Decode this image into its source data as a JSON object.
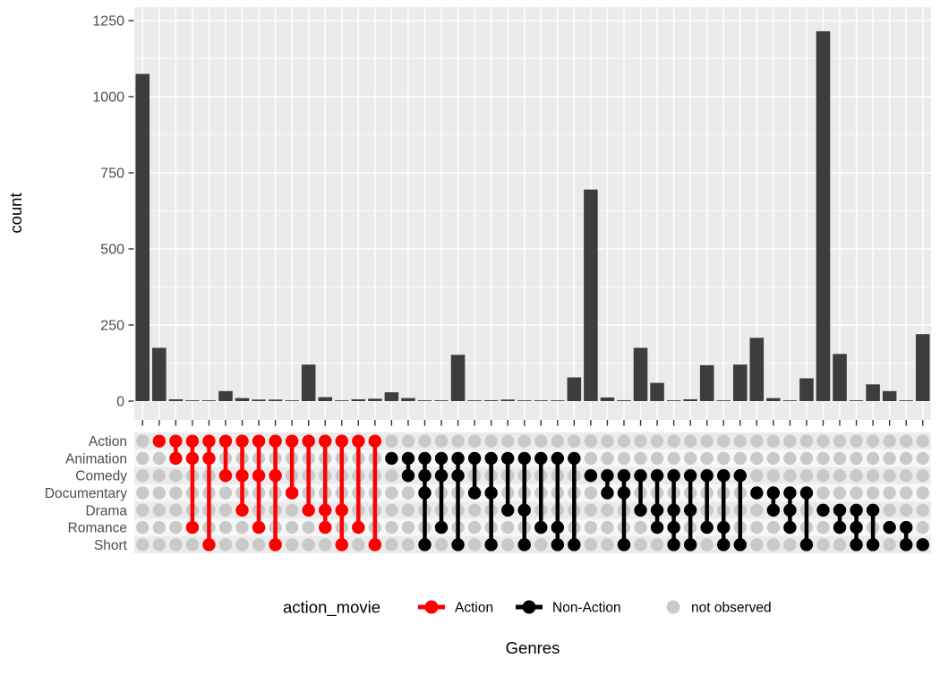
{
  "y_axis": {
    "title": "count",
    "ticks": [
      0,
      250,
      500,
      750,
      1000,
      1250
    ]
  },
  "x_axis": {
    "title": "Genres"
  },
  "matrix_rows": [
    "Action",
    "Animation",
    "Comedy",
    "Documentary",
    "Drama",
    "Romance",
    "Short"
  ],
  "legend": {
    "title": "action_movie",
    "items": [
      {
        "label": "Action",
        "color": "#FF0000",
        "key": "line-dot"
      },
      {
        "label": "Non-Action",
        "color": "#000000",
        "key": "line-dot"
      },
      {
        "label": "not observed",
        "color": "#C9C9C9",
        "key": "dot"
      }
    ]
  },
  "colors": {
    "bar": "#3D3D3D",
    "action": "#FF0000",
    "non_action": "#000000",
    "not_observed": "#C9C9C9",
    "panel": "#EBEBEB",
    "grid": "#FFFFFF",
    "stripe_dark": "#EBEBEB",
    "stripe_light": "#F7F7F7",
    "tick_label": "#4D4D4D",
    "axis_title": "#000000",
    "tick_mark": "#333333"
  },
  "chart_data": {
    "type": "bar",
    "variant": "upset",
    "title": "",
    "xlabel": "Genres",
    "ylabel": "count",
    "ylim": [
      0,
      1250
    ],
    "grid": true,
    "legend_position": "bottom",
    "set_rows": [
      "Action",
      "Animation",
      "Comedy",
      "Documentary",
      "Drama",
      "Romance",
      "Short"
    ],
    "combinations": [
      {
        "genres": [],
        "count": 1075,
        "group": "empty"
      },
      {
        "genres": [
          "Action"
        ],
        "count": 175,
        "group": "action"
      },
      {
        "genres": [
          "Action",
          "Animation"
        ],
        "count": 6,
        "group": "action"
      },
      {
        "genres": [
          "Action",
          "Animation",
          "Romance"
        ],
        "count": 2,
        "group": "action"
      },
      {
        "genres": [
          "Action",
          "Animation",
          "Short"
        ],
        "count": 2,
        "group": "action"
      },
      {
        "genres": [
          "Action",
          "Comedy"
        ],
        "count": 33,
        "group": "action"
      },
      {
        "genres": [
          "Action",
          "Comedy",
          "Drama"
        ],
        "count": 10,
        "group": "action"
      },
      {
        "genres": [
          "Action",
          "Comedy",
          "Romance"
        ],
        "count": 5,
        "group": "action"
      },
      {
        "genres": [
          "Action",
          "Comedy",
          "Short"
        ],
        "count": 5,
        "group": "action"
      },
      {
        "genres": [
          "Action",
          "Documentary"
        ],
        "count": 2,
        "group": "action"
      },
      {
        "genres": [
          "Action",
          "Drama"
        ],
        "count": 120,
        "group": "action"
      },
      {
        "genres": [
          "Action",
          "Drama",
          "Romance"
        ],
        "count": 13,
        "group": "action"
      },
      {
        "genres": [
          "Action",
          "Drama",
          "Short"
        ],
        "count": 2,
        "group": "action"
      },
      {
        "genres": [
          "Action",
          "Romance"
        ],
        "count": 6,
        "group": "action"
      },
      {
        "genres": [
          "Action",
          "Short"
        ],
        "count": 8,
        "group": "action"
      },
      {
        "genres": [
          "Animation"
        ],
        "count": 29,
        "group": "non_action"
      },
      {
        "genres": [
          "Animation",
          "Comedy"
        ],
        "count": 10,
        "group": "non_action"
      },
      {
        "genres": [
          "Animation",
          "Comedy",
          "Documentary",
          "Short"
        ],
        "count": 2,
        "group": "non_action"
      },
      {
        "genres": [
          "Animation",
          "Comedy",
          "Romance"
        ],
        "count": 1,
        "group": "non_action"
      },
      {
        "genres": [
          "Animation",
          "Comedy",
          "Short"
        ],
        "count": 152,
        "group": "non_action"
      },
      {
        "genres": [
          "Animation",
          "Documentary"
        ],
        "count": 2,
        "group": "non_action"
      },
      {
        "genres": [
          "Animation",
          "Documentary",
          "Short"
        ],
        "count": 3,
        "group": "non_action"
      },
      {
        "genres": [
          "Animation",
          "Drama"
        ],
        "count": 5,
        "group": "non_action"
      },
      {
        "genres": [
          "Animation",
          "Drama",
          "Short"
        ],
        "count": 1,
        "group": "non_action"
      },
      {
        "genres": [
          "Animation",
          "Romance"
        ],
        "count": 1,
        "group": "non_action"
      },
      {
        "genres": [
          "Animation",
          "Romance",
          "Short"
        ],
        "count": 2,
        "group": "non_action"
      },
      {
        "genres": [
          "Animation",
          "Short"
        ],
        "count": 78,
        "group": "non_action"
      },
      {
        "genres": [
          "Comedy"
        ],
        "count": 695,
        "group": "non_action"
      },
      {
        "genres": [
          "Comedy",
          "Documentary"
        ],
        "count": 12,
        "group": "non_action"
      },
      {
        "genres": [
          "Comedy",
          "Documentary",
          "Short"
        ],
        "count": 3,
        "group": "non_action"
      },
      {
        "genres": [
          "Comedy",
          "Drama"
        ],
        "count": 175,
        "group": "non_action"
      },
      {
        "genres": [
          "Comedy",
          "Drama",
          "Romance"
        ],
        "count": 60,
        "group": "non_action"
      },
      {
        "genres": [
          "Comedy",
          "Drama",
          "Romance",
          "Short"
        ],
        "count": 2,
        "group": "non_action"
      },
      {
        "genres": [
          "Comedy",
          "Drama",
          "Short"
        ],
        "count": 6,
        "group": "non_action"
      },
      {
        "genres": [
          "Comedy",
          "Romance"
        ],
        "count": 118,
        "group": "non_action"
      },
      {
        "genres": [
          "Comedy",
          "Romance",
          "Short"
        ],
        "count": 2,
        "group": "non_action"
      },
      {
        "genres": [
          "Comedy",
          "Short"
        ],
        "count": 120,
        "group": "non_action"
      },
      {
        "genres": [
          "Documentary"
        ],
        "count": 208,
        "group": "non_action"
      },
      {
        "genres": [
          "Documentary",
          "Drama"
        ],
        "count": 10,
        "group": "non_action"
      },
      {
        "genres": [
          "Documentary",
          "Drama",
          "Romance"
        ],
        "count": 1,
        "group": "non_action"
      },
      {
        "genres": [
          "Documentary",
          "Short"
        ],
        "count": 75,
        "group": "non_action"
      },
      {
        "genres": [
          "Drama"
        ],
        "count": 1215,
        "group": "non_action"
      },
      {
        "genres": [
          "Drama",
          "Romance"
        ],
        "count": 155,
        "group": "non_action"
      },
      {
        "genres": [
          "Drama",
          "Romance",
          "Short"
        ],
        "count": 2,
        "group": "non_action"
      },
      {
        "genres": [
          "Drama",
          "Short"
        ],
        "count": 55,
        "group": "non_action"
      },
      {
        "genres": [
          "Romance"
        ],
        "count": 33,
        "group": "non_action"
      },
      {
        "genres": [
          "Romance",
          "Short"
        ],
        "count": 2,
        "group": "non_action"
      },
      {
        "genres": [
          "Short"
        ],
        "count": 220,
        "group": "non_action"
      }
    ]
  }
}
